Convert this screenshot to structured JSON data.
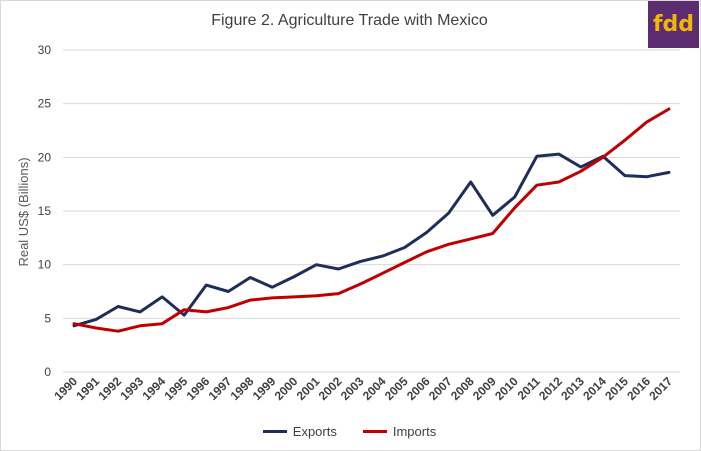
{
  "logo_text": "fdd",
  "colors": {
    "exports": "#1f2d5c",
    "imports": "#c00000",
    "logo_bg": "#5b2c6f",
    "logo_text": "#f2b705"
  },
  "chart_data": {
    "type": "line",
    "title": "Figure 2. Agriculture Trade with Mexico",
    "xlabel": "",
    "ylabel": "Real US$ (Billions)",
    "ylim": [
      0,
      30
    ],
    "yticks": [
      0,
      5,
      10,
      15,
      20,
      25,
      30
    ],
    "grid": true,
    "legend_position": "bottom",
    "categories": [
      "1990",
      "1991",
      "1992",
      "1993",
      "1994",
      "1995",
      "1996",
      "1997",
      "1998",
      "1999",
      "2000",
      "2001",
      "2002",
      "2003",
      "2004",
      "2005",
      "2006",
      "2007",
      "2008",
      "2009",
      "2010",
      "2011",
      "2012",
      "2013",
      "2014",
      "2015",
      "2016",
      "2017"
    ],
    "series": [
      {
        "name": "Exports",
        "values": [
          4.3,
          4.9,
          6.1,
          5.6,
          7.0,
          5.3,
          8.1,
          7.5,
          8.8,
          7.9,
          8.9,
          10.0,
          9.6,
          10.3,
          10.8,
          11.6,
          13.0,
          14.8,
          17.7,
          14.6,
          16.3,
          20.1,
          20.3,
          19.1,
          20.1,
          18.3,
          18.2,
          18.6
        ]
      },
      {
        "name": "Imports",
        "values": [
          4.5,
          4.1,
          3.8,
          4.3,
          4.5,
          5.8,
          5.6,
          6.0,
          6.7,
          6.9,
          7.0,
          7.1,
          7.3,
          8.2,
          9.2,
          10.2,
          11.2,
          11.9,
          12.4,
          12.9,
          15.3,
          17.4,
          17.7,
          18.7,
          20.0,
          21.6,
          23.3,
          24.5
        ]
      }
    ]
  }
}
